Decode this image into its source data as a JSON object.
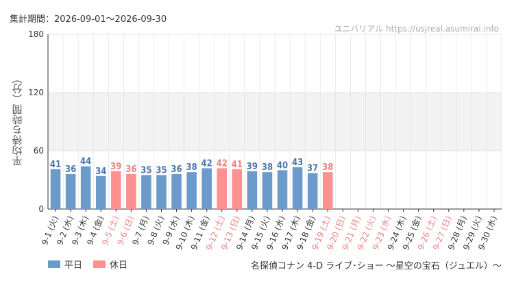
{
  "header": {
    "period": "集計期間：2026-09-01〜2026-09-30",
    "site": "ユニバリアル  https://usjreal.asumirai.info"
  },
  "legend": {
    "weekday": "平日",
    "holiday": "休日"
  },
  "footer": {
    "attraction": "名探偵コナン 4-D ライブ･ショー 〜星空の宝石（ジュエル）〜"
  },
  "colors": {
    "weekday": "#6b9bcb",
    "holiday": "#ff9090",
    "weekday_label": "#4a76ad",
    "holiday_label": "#ef7f7f",
    "band": "#f2f2f2",
    "axis": "#333333",
    "grid": "#dddddd"
  },
  "chart_data": {
    "type": "bar",
    "ylabel": "平均待ち時間（分）",
    "ylim": [
      0,
      180
    ],
    "yticks": [
      0,
      60,
      120,
      180
    ],
    "shaded_band": [
      60,
      120
    ],
    "categories": [
      "9-1 (火)",
      "9-2 (水)",
      "9-3 (木)",
      "9-4 (金)",
      "9-5 (土)",
      "9-6 (日)",
      "9-7 (月)",
      "9-8 (火)",
      "9-9 (水)",
      "9-10 (木)",
      "9-11 (金)",
      "9-12 (土)",
      "9-13 (日)",
      "9-14 (月)",
      "9-15 (火)",
      "9-16 (水)",
      "9-17 (木)",
      "9-18 (金)",
      "9-19 (土)",
      "9-20 (日)",
      "9-21 (月)",
      "9-22 (火)",
      "9-23 (水)",
      "9-24 (木)",
      "9-25 (金)",
      "9-26 (土)",
      "9-27 (日)",
      "9-28 (月)",
      "9-29 (火)",
      "9-30 (水)"
    ],
    "day_type": [
      "weekday",
      "weekday",
      "weekday",
      "weekday",
      "holiday",
      "holiday",
      "weekday",
      "weekday",
      "weekday",
      "weekday",
      "weekday",
      "holiday",
      "holiday",
      "weekday",
      "weekday",
      "weekday",
      "weekday",
      "weekday",
      "holiday",
      "holiday",
      "holiday",
      "holiday",
      "holiday",
      "weekday",
      "weekday",
      "holiday",
      "holiday",
      "weekday",
      "weekday",
      "weekday"
    ],
    "series": [
      {
        "name": "平均待ち時間",
        "values": [
          41,
          36,
          44,
          34,
          39,
          36,
          35,
          35,
          36,
          38,
          42,
          42,
          41,
          39,
          38,
          40,
          43,
          37,
          38,
          null,
          null,
          null,
          null,
          null,
          null,
          null,
          null,
          null,
          null,
          null
        ]
      }
    ]
  }
}
